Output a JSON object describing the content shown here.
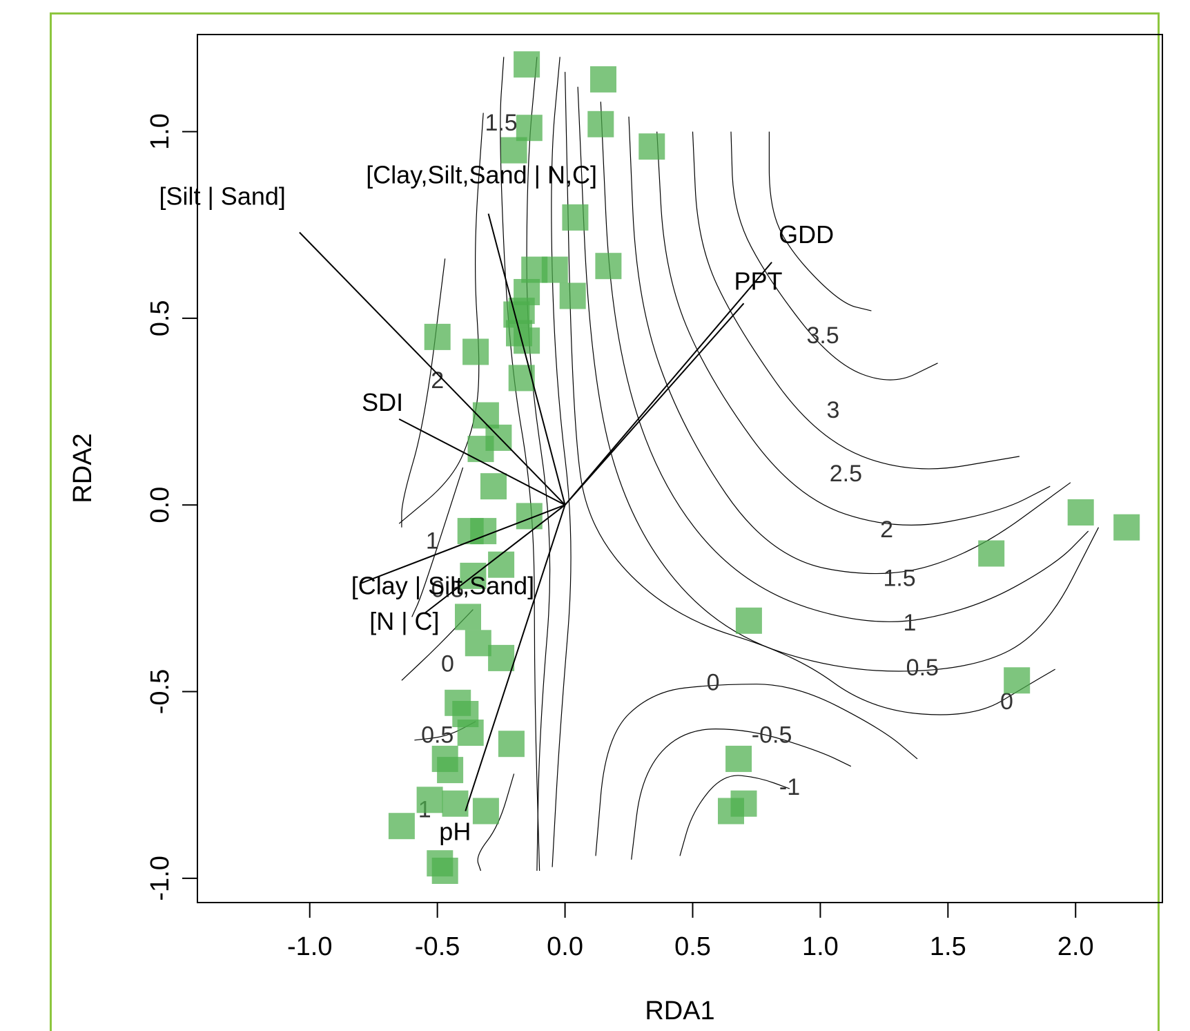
{
  "chart_data": {
    "type": "scatter",
    "xlabel": "RDA1",
    "ylabel": "RDA2",
    "xlim": [
      -1.44,
      2.34
    ],
    "ylim": [
      -1.065,
      1.26
    ],
    "x_ticks": [
      "-1.0",
      "-0.5",
      "0.0",
      "0.5",
      "1.0",
      "1.5",
      "2.0"
    ],
    "y_ticks": [
      "-1.0",
      "-0.5",
      "0.0",
      "0.5",
      "1.0"
    ],
    "grid": false,
    "point_color": "#4cae4c",
    "points": [
      {
        "x": -0.15,
        "y": 1.18
      },
      {
        "x": 0.15,
        "y": 1.14
      },
      {
        "x": -0.14,
        "y": 1.01
      },
      {
        "x": 0.14,
        "y": 1.02
      },
      {
        "x": -0.2,
        "y": 0.95
      },
      {
        "x": 0.34,
        "y": 0.96
      },
      {
        "x": 0.04,
        "y": 0.77
      },
      {
        "x": -0.12,
        "y": 0.63
      },
      {
        "x": -0.04,
        "y": 0.63
      },
      {
        "x": 0.17,
        "y": 0.64
      },
      {
        "x": -0.15,
        "y": 0.57
      },
      {
        "x": 0.03,
        "y": 0.56
      },
      {
        "x": -0.19,
        "y": 0.51
      },
      {
        "x": -0.17,
        "y": 0.52
      },
      {
        "x": -0.18,
        "y": 0.46
      },
      {
        "x": -0.15,
        "y": 0.44
      },
      {
        "x": -0.5,
        "y": 0.45
      },
      {
        "x": -0.35,
        "y": 0.41
      },
      {
        "x": -0.17,
        "y": 0.34
      },
      {
        "x": -0.31,
        "y": 0.24
      },
      {
        "x": -0.26,
        "y": 0.18
      },
      {
        "x": -0.33,
        "y": 0.15
      },
      {
        "x": -0.28,
        "y": 0.05
      },
      {
        "x": -0.14,
        "y": -0.03
      },
      {
        "x": -0.37,
        "y": -0.07
      },
      {
        "x": -0.32,
        "y": -0.07
      },
      {
        "x": -0.25,
        "y": -0.16
      },
      {
        "x": -0.36,
        "y": -0.19
      },
      {
        "x": -0.38,
        "y": -0.3
      },
      {
        "x": -0.34,
        "y": -0.37
      },
      {
        "x": -0.25,
        "y": -0.41
      },
      {
        "x": -0.42,
        "y": -0.53
      },
      {
        "x": -0.39,
        "y": -0.56
      },
      {
        "x": -0.37,
        "y": -0.61
      },
      {
        "x": -0.21,
        "y": -0.64
      },
      {
        "x": -0.47,
        "y": -0.68
      },
      {
        "x": -0.45,
        "y": -0.71
      },
      {
        "x": -0.53,
        "y": -0.79
      },
      {
        "x": -0.43,
        "y": -0.8
      },
      {
        "x": -0.31,
        "y": -0.82
      },
      {
        "x": -0.64,
        "y": -0.86
      },
      {
        "x": -0.49,
        "y": -0.96
      },
      {
        "x": -0.47,
        "y": -0.98
      },
      {
        "x": 0.72,
        "y": -0.31
      },
      {
        "x": 0.68,
        "y": -0.68
      },
      {
        "x": 0.7,
        "y": -0.8
      },
      {
        "x": 0.65,
        "y": -0.82
      },
      {
        "x": 1.67,
        "y": -0.13
      },
      {
        "x": 2.02,
        "y": -0.02
      },
      {
        "x": 2.2,
        "y": -0.06
      },
      {
        "x": 1.77,
        "y": -0.47
      }
    ],
    "arrows": [
      {
        "label": "[Silt | Sand]",
        "x": -1.04,
        "y": 0.73
      },
      {
        "label": "[Clay,Silt,Sand | N,C]",
        "x": -0.3,
        "y": 0.78
      },
      {
        "label": "GDD",
        "x": 0.81,
        "y": 0.65
      },
      {
        "label": "PPT",
        "x": 0.7,
        "y": 0.54
      },
      {
        "label": "SDI",
        "x": -0.65,
        "y": 0.23
      },
      {
        "label": "[Clay | Silt,Sand]",
        "x": -0.8,
        "y": -0.21
      },
      {
        "label": "[N | C]",
        "x": -0.55,
        "y": -0.29
      },
      {
        "label": "pH",
        "x": -0.39,
        "y": -0.82
      }
    ],
    "contour_labels": [
      "3.5",
      "3",
      "2.5",
      "2",
      "1.5",
      "1",
      "0.5",
      "0",
      "-0.5",
      "-1",
      "1.5",
      "2",
      "1",
      "0.5",
      "0",
      "0.5",
      "1",
      "0"
    ]
  }
}
